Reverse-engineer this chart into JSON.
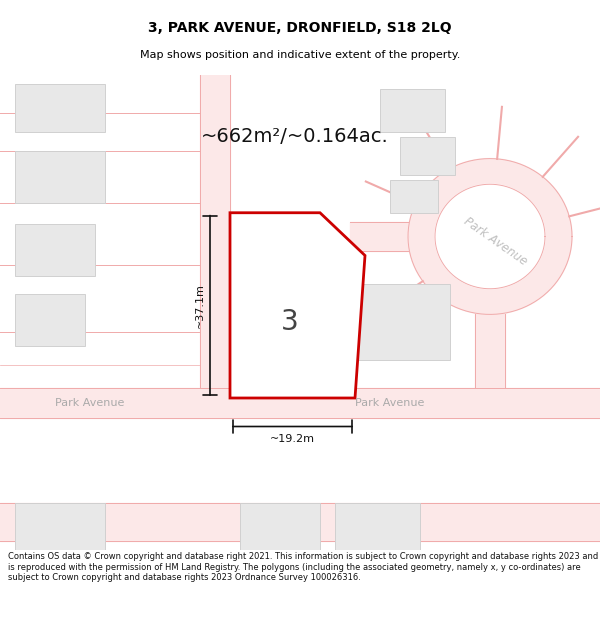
{
  "title": "3, PARK AVENUE, DRONFIELD, S18 2LQ",
  "subtitle": "Map shows position and indicative extent of the property.",
  "area_text": "~662m²/~0.164ac.",
  "dim_width": "~19.2m",
  "dim_height": "~37.1m",
  "plot_label": "3",
  "road_label_left": "Park Avenue",
  "road_label_center": "Park Avenue",
  "road_label_right": "Park Avenue",
  "footer": "Contains OS data © Crown copyright and database right 2021. This information is subject to Crown copyright and database rights 2023 and is reproduced with the permission of HM Land Registry. The polygons (including the associated geometry, namely x, y co-ordinates) are subject to Crown copyright and database rights 2023 Ordnance Survey 100026316.",
  "bg_color": "#ffffff",
  "road_fill": "#fce8e8",
  "road_line": "#f0aaaa",
  "building_fill": "#e8e8e8",
  "building_edge": "#d0d0d0",
  "plot_edge": "#cc0000",
  "dim_color": "#111111",
  "road_label_color": "#aaaaaa",
  "roundabout_label_color": "#c0c0c0",
  "footer_color": "#111111"
}
